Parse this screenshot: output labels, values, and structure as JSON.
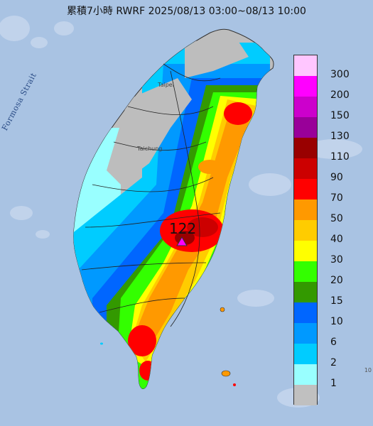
{
  "title": "累積7小時 RWRF 2025/08/13 03:00~08/13 10:00",
  "strait_label": "Formosa Strait",
  "place_labels": [
    "Taipei",
    "Taichung"
  ],
  "max_value_label": "122",
  "max_marker": "magenta-triangle",
  "corner_text": "10",
  "colors": {
    "sea": "#a9c3e3",
    "land": "#bdbdbd",
    "boundary": "#222222"
  },
  "legend": {
    "colors": [
      "#ffc6ff",
      "#ff00ff",
      "#cc00cc",
      "#990099",
      "#990000",
      "#cc0000",
      "#ff0000",
      "#ff9900",
      "#ffcc00",
      "#ffff00",
      "#33ff00",
      "#339900",
      "#0066ff",
      "#0099ff",
      "#00ccff",
      "#99ffff",
      "#c0c0c0"
    ],
    "labels": [
      "300",
      "200",
      "150",
      "130",
      "110",
      "90",
      "70",
      "50",
      "40",
      "30",
      "20",
      "15",
      "10",
      "6",
      "2",
      "1",
      ""
    ]
  }
}
